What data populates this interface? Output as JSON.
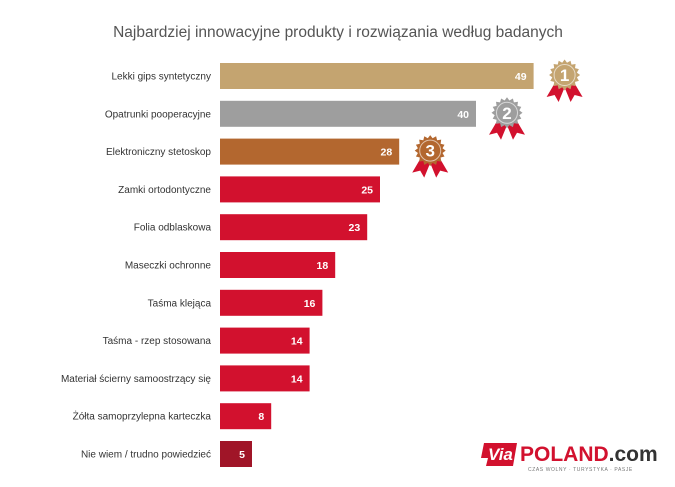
{
  "chart_data": {
    "type": "bar",
    "orientation": "horizontal",
    "title": "Najbardziej innowacyjne produkty i rozwiązania według badanych",
    "categories": [
      "Lekki gips syntetyczny",
      "Opatrunki pooperacyjne",
      "Elektroniczny stetoskop",
      "Zamki ortodontyczne",
      "Folia odblaskowa",
      "Maseczki ochronne",
      "Taśma klejąca",
      "Taśma - rzep stosowana",
      "Materiał ścierny samoostrzący się",
      "Żółta samoprzylepna karteczka",
      "Nie wiem / trudno powiedzieć"
    ],
    "values": [
      49,
      40,
      28,
      25,
      23,
      18,
      16,
      14,
      14,
      8,
      5
    ],
    "value_labels": [
      "49",
      "40",
      "28",
      "25",
      "23",
      "18",
      "16",
      "14",
      "14",
      "8",
      "5"
    ],
    "colors": [
      "#c4a470",
      "#9e9e9e",
      "#b3672f",
      "#d2112e",
      "#d2112e",
      "#d2112e",
      "#d2112e",
      "#d2112e",
      "#d2112e",
      "#d2112e",
      "#a01528"
    ],
    "xlim": [
      0,
      55
    ],
    "grid": false,
    "legend": "none",
    "badges": [
      {
        "rank": "1",
        "bar_index": 0,
        "color": "#c4a470",
        "ribbon_color": "#d2112e"
      },
      {
        "rank": "2",
        "bar_index": 1,
        "color": "#9e9e9e",
        "ribbon_color": "#d2112e"
      },
      {
        "rank": "3",
        "bar_index": 2,
        "color": "#b3672f",
        "ribbon_color": "#d2112e"
      }
    ]
  },
  "logo": {
    "via": "Via",
    "brand": "POLAND",
    "domain": ".com",
    "tagline": "CZAS WOLNY · TURYSTYKA · PASJE",
    "red": "#d2112e",
    "dark": "#333333"
  }
}
